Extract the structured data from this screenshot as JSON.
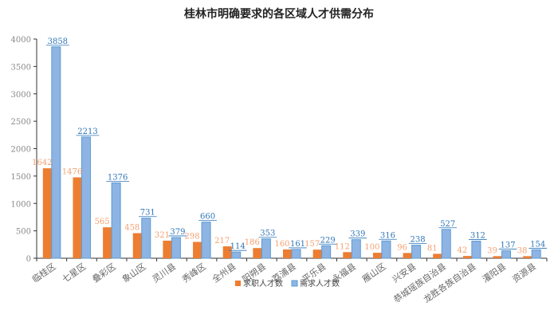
{
  "chart_data": {
    "type": "bar",
    "title": "桂林市明确要求的各区域人才供需分布",
    "categories": [
      "临桂区",
      "七星区",
      "叠彩区",
      "象山区",
      "灵川县",
      "秀峰区",
      "全州县",
      "阳朔县",
      "荔浦县",
      "平乐县",
      "永福县",
      "雁山区",
      "兴安县",
      "恭城瑶族自治县",
      "龙胜各族自治县",
      "灌阳县",
      "资源县"
    ],
    "series": [
      {
        "name": "求职人才数",
        "color": "#ED7D31",
        "label_color": "#F4A070",
        "values": [
          1642,
          1476,
          565,
          458,
          321,
          298,
          217,
          186,
          160,
          157,
          112,
          100,
          96,
          81,
          42,
          39,
          38
        ]
      },
      {
        "name": "需求人才数",
        "color": "#8EB4E3",
        "border": "#5B9BD5",
        "label_color": "#2E75B6",
        "values": [
          3858,
          2213,
          1376,
          731,
          379,
          660,
          114,
          353,
          161,
          229,
          339,
          316,
          238,
          527,
          312,
          137,
          154
        ]
      }
    ],
    "ylim": [
      0,
      4000
    ],
    "yticks": [
      0,
      500,
      1000,
      1500,
      2000,
      2500,
      3000,
      3500,
      4000
    ],
    "xlabel": "",
    "ylabel": "",
    "legend": "bottom",
    "grid": false
  }
}
